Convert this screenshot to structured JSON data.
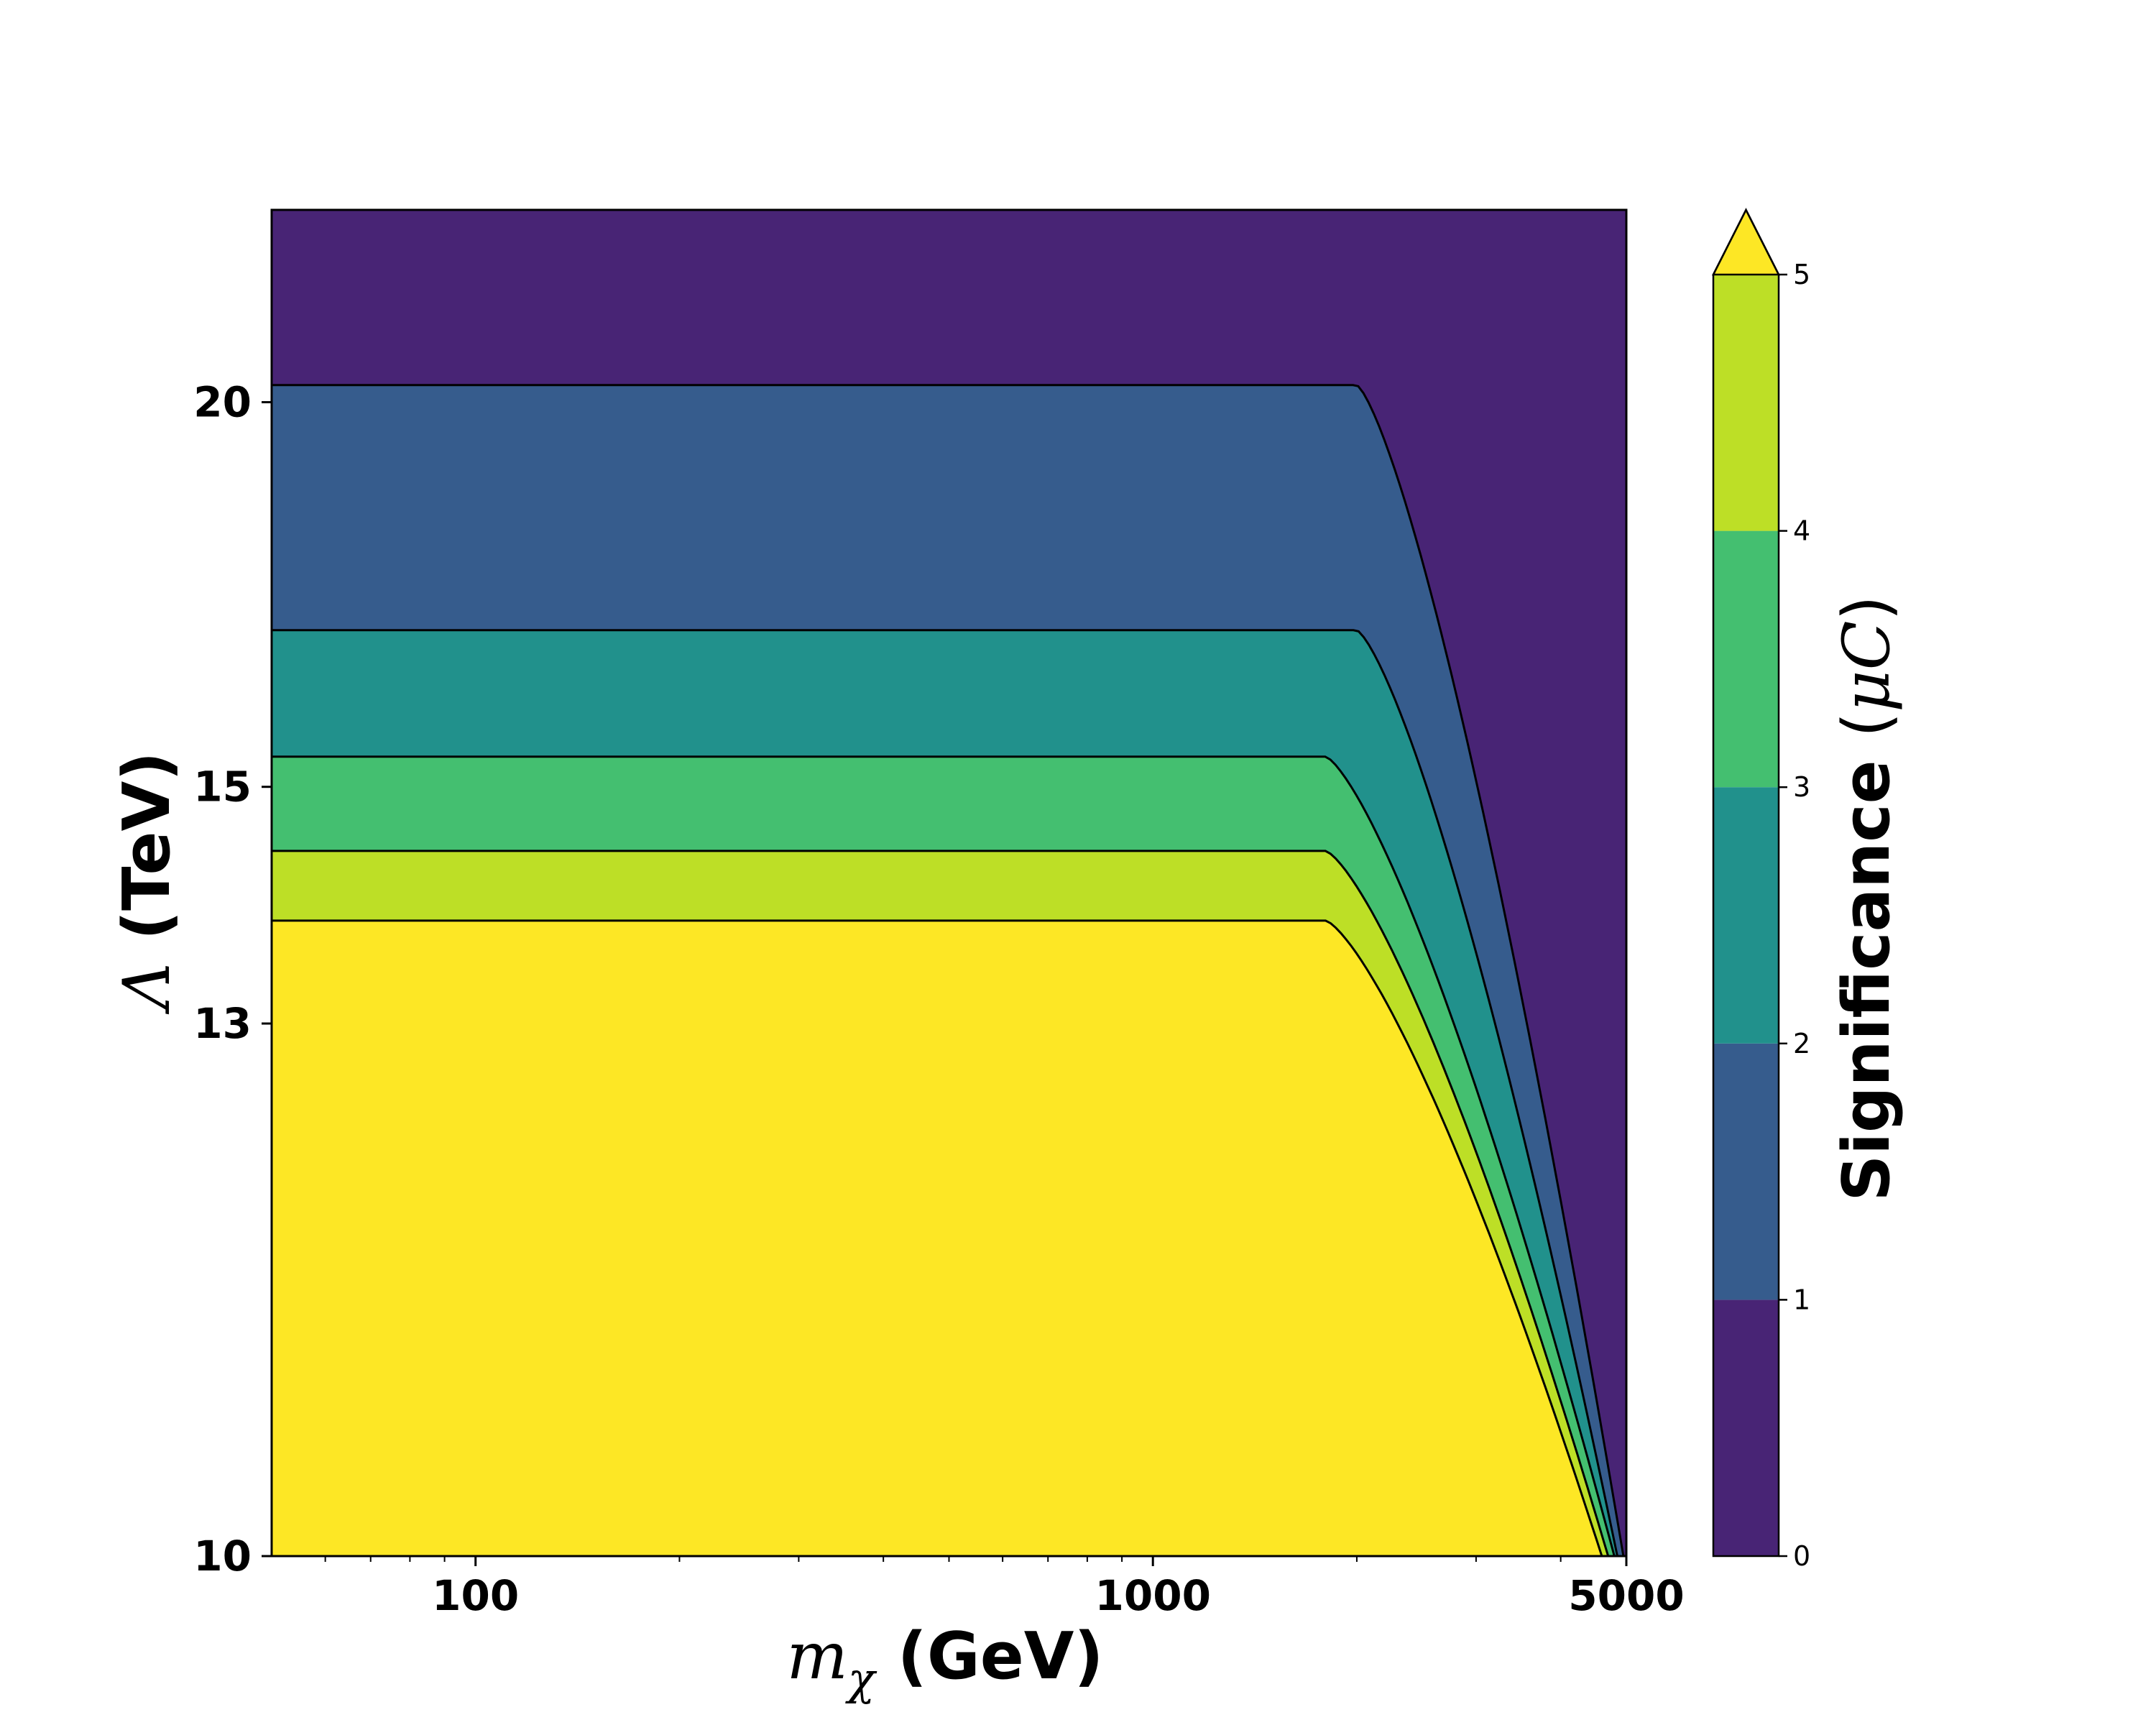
{
  "chart_data": {
    "type": "contourf",
    "title": "",
    "xlabel": {
      "symbol": "m",
      "subscript": "χ",
      "unit": "(GeV)"
    },
    "ylabel": {
      "symbol": "Λ",
      "unit": "(TeV)"
    },
    "xscale": "log",
    "yscale": "reciprocal",
    "xlim": [
      50,
      5000
    ],
    "ylim": [
      10,
      24
    ],
    "xticks": [
      100,
      1000,
      5000
    ],
    "xtick_labels": [
      "100",
      "1000",
      "5000"
    ],
    "yticks": [
      10,
      13,
      15,
      20
    ],
    "ytick_labels": [
      "10",
      "13",
      "15",
      "20"
    ],
    "grid": false,
    "colorbar": {
      "label": {
        "text": "Significance",
        "math_open": "(",
        "mu": "μ",
        "C": "C",
        "math_close": ")"
      },
      "levels": [
        0,
        1,
        2,
        3,
        4,
        5
      ],
      "tick_labels": [
        "0",
        "1",
        "2",
        "3",
        "4",
        "5"
      ],
      "extend": "max",
      "colors": [
        "#482475",
        "#365c8d",
        "#21918c",
        "#44bf70",
        "#bddf26",
        "#fde725"
      ],
      "over_color": "#fde725"
    },
    "contour_lines": [
      {
        "level": 1,
        "lambda_plateau": 20.3,
        "x_bend": 2000,
        "x_end": 4950
      },
      {
        "level": 2,
        "lambda_plateau": 16.7,
        "x_bend": 2000,
        "x_end": 4850
      },
      {
        "level": 3,
        "lambda_plateau": 15.3,
        "x_bend": 1800,
        "x_end": 4800
      },
      {
        "level": 4,
        "lambda_plateau": 14.4,
        "x_bend": 1800,
        "x_end": 4700
      },
      {
        "level": 5,
        "lambda_plateau": 13.8,
        "x_bend": 1800,
        "x_end": 4600
      }
    ]
  }
}
